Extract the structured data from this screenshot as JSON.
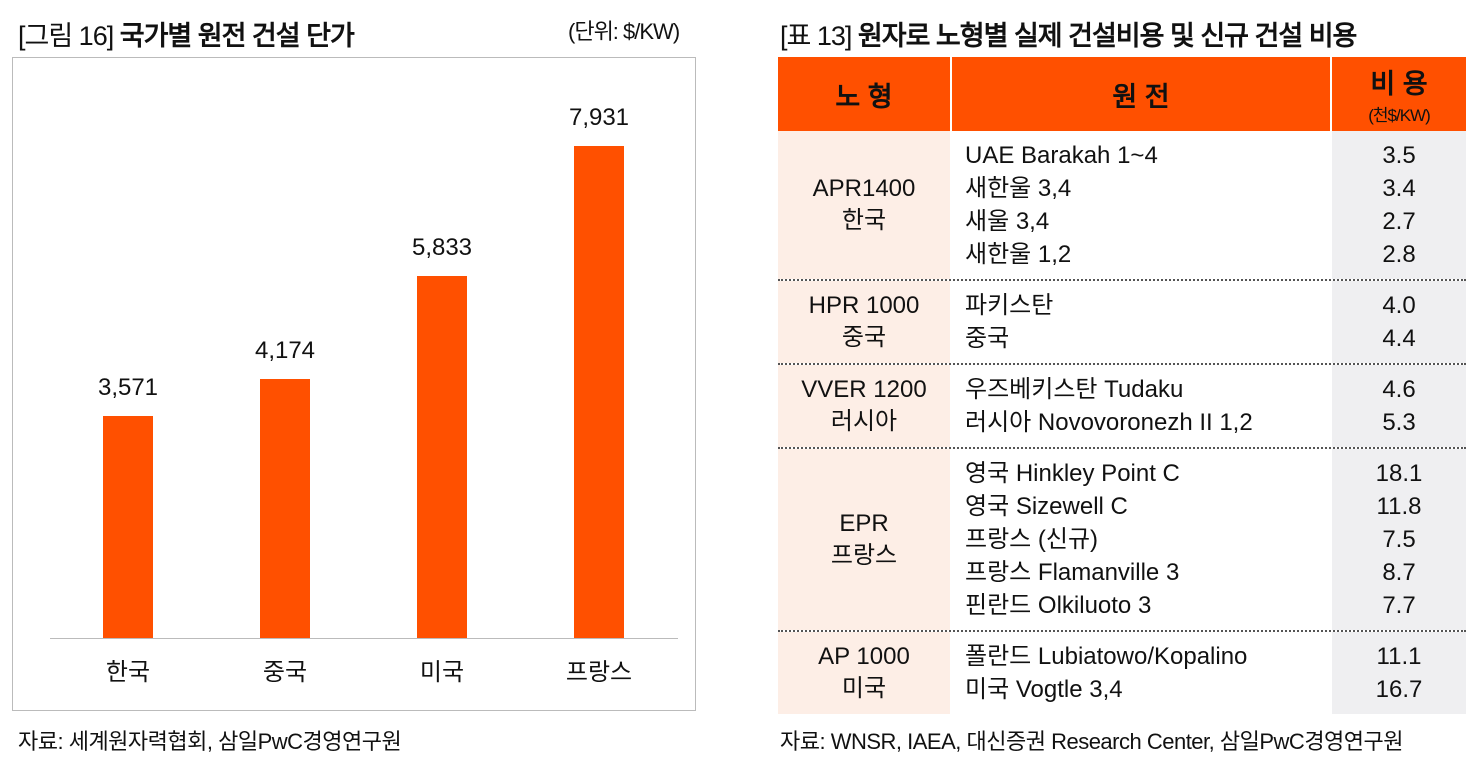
{
  "left": {
    "title_prefix": "[그림 16]",
    "title": "국가별 원전 건설 단가",
    "unit": "(단위: $/KW)",
    "source": "자료: 세계원자력협회, 삼일PwC경영연구원"
  },
  "chart_data": {
    "type": "bar",
    "title": "국가별 원전 건설 단가",
    "ylabel": "$/KW",
    "categories": [
      "한국",
      "중국",
      "미국",
      "프랑스"
    ],
    "values": [
      3571,
      4174,
      5833,
      7931
    ],
    "value_labels": [
      "3,571",
      "4,174",
      "5,833",
      "7,931"
    ],
    "ylim": [
      0,
      7931
    ],
    "grid": false,
    "bar_color": "#FF5000"
  },
  "right": {
    "title_prefix": "[표 13]",
    "title": "원자로 노형별 실제 건설비용 및 신규 건설 비용",
    "headers": {
      "model": "노 형",
      "plant": "원 전",
      "cost": "비 용",
      "cost_unit": "(천$/KW)"
    },
    "groups": [
      {
        "model": "APR1400",
        "country": "한국",
        "plants": [
          "UAE Barakah 1~4",
          "새한울 3,4",
          "새울 3,4",
          "새한울 1,2"
        ],
        "costs": [
          "3.5",
          "3.4",
          "2.7",
          "2.8"
        ]
      },
      {
        "model": "HPR 1000",
        "country": "중국",
        "plants": [
          "파키스탄",
          "중국"
        ],
        "costs": [
          "4.0",
          "4.4"
        ]
      },
      {
        "model": "VVER 1200",
        "country": "러시아",
        "plants": [
          "우즈베키스탄 Tudaku",
          "러시아 Novovoronezh II 1,2"
        ],
        "costs": [
          "4.6",
          "5.3"
        ]
      },
      {
        "model": "EPR",
        "country": "프랑스",
        "plants": [
          "영국 Hinkley Point C",
          "영국 Sizewell C",
          "프랑스 (신규)",
          "프랑스 Flamanville 3",
          "핀란드 Olkiluoto 3"
        ],
        "costs": [
          "18.1",
          "11.8",
          "7.5",
          "8.7",
          "7.7"
        ]
      },
      {
        "model": "AP 1000",
        "country": "미국",
        "plants": [
          "폴란드 Lubiatowo/Kopalino",
          "미국 Vogtle 3,4"
        ],
        "costs": [
          "11.1",
          "16.7"
        ]
      }
    ],
    "source": "자료: WNSR, IAEA, 대신증권 Research Center, 삼일PwC경영연구원"
  },
  "colors": {
    "accent": "#FF5000",
    "model_bg": "#FDEEE6",
    "cost_bg": "#EFEFF1"
  }
}
